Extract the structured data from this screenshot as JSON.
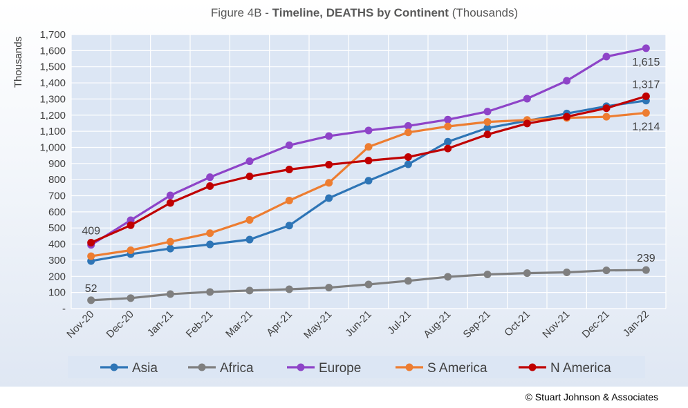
{
  "chart_data": {
    "type": "line",
    "title_prefix": "Figure 4B - ",
    "title_bold": "Timeline, DEATHS by Continent",
    "title_suffix": " (Thousands)",
    "ylabel": "Thousands",
    "xlabel": "",
    "ylim": [
      0,
      1700
    ],
    "ytick_values": [
      0,
      100,
      200,
      300,
      400,
      500,
      600,
      700,
      800,
      900,
      1000,
      1100,
      1200,
      1300,
      1400,
      1500,
      1600,
      1700
    ],
    "ytick_labels": [
      "-",
      "100",
      "200",
      "300",
      "400",
      "500",
      "600",
      "700",
      "800",
      "900",
      "1,000",
      "1,100",
      "1,200",
      "1,300",
      "1,400",
      "1,500",
      "1,600",
      "1,700"
    ],
    "grid": true,
    "legend_position": "bottom",
    "categories": [
      "Nov-20",
      "Dec-20",
      "Jan-21",
      "Feb-21",
      "Mar-21",
      "Apr-21",
      "May-21",
      "Jun-21",
      "Jul-21",
      "Aug-21",
      "Sep-21",
      "Oct-21",
      "Nov-21",
      "Dec-21",
      "Jan-22"
    ],
    "series": [
      {
        "name": "Asia",
        "color": "#2e75b6",
        "values": [
          295,
          338,
          372,
          398,
          428,
          515,
          685,
          793,
          895,
          1035,
          1120,
          1165,
          1210,
          1255,
          1290
        ]
      },
      {
        "name": "Africa",
        "color": "#7f7f7f",
        "values": [
          52,
          65,
          90,
          103,
          112,
          120,
          130,
          150,
          172,
          197,
          212,
          220,
          225,
          237,
          239
        ]
      },
      {
        "name": "Europe",
        "color": "#8e44c8",
        "values": [
          395,
          548,
          702,
          815,
          914,
          1013,
          1070,
          1105,
          1133,
          1172,
          1222,
          1302,
          1413,
          1563,
          1615
        ]
      },
      {
        "name": "S America",
        "color": "#ed7d31",
        "values": [
          325,
          362,
          415,
          468,
          550,
          670,
          780,
          1003,
          1093,
          1130,
          1158,
          1170,
          1183,
          1190,
          1214
        ]
      },
      {
        "name": "N America",
        "color": "#c00000",
        "values": [
          409,
          517,
          655,
          760,
          820,
          863,
          893,
          918,
          940,
          993,
          1080,
          1148,
          1190,
          1243,
          1317
        ]
      }
    ],
    "annotations": [
      {
        "text": "409",
        "series": "N America",
        "index": 0,
        "placement": "above"
      },
      {
        "text": "52",
        "series": "Africa",
        "index": 0,
        "placement": "above"
      },
      {
        "text": "1,615",
        "series": "Europe",
        "index": 14,
        "placement": "below"
      },
      {
        "text": "1,317",
        "series": "N America",
        "index": 14,
        "placement": "above"
      },
      {
        "text": "1,214",
        "series": "S America",
        "index": 14,
        "placement": "below"
      },
      {
        "text": "239",
        "series": "Africa",
        "index": 14,
        "placement": "above"
      }
    ]
  },
  "copyright": "© Stuart Johnson & Associates"
}
